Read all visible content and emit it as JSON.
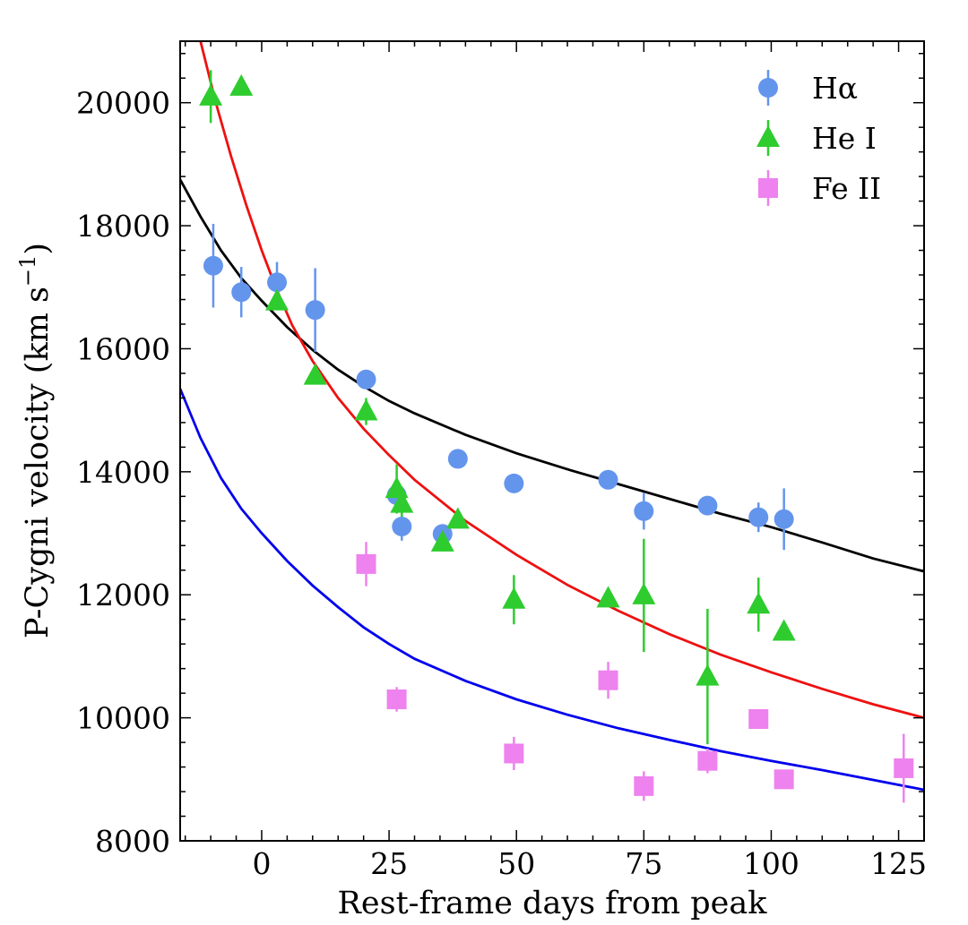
{
  "chart_data": {
    "type": "scatter",
    "title": "",
    "xlabel": "Rest-frame days from peak",
    "ylabel": "P-Cygni velocity (km s",
    "ylabel_superscript": "−1",
    "ylabel_suffix": ")",
    "xlim": [
      -16,
      130
    ],
    "ylim": [
      8000,
      21000
    ],
    "xticks": [
      0,
      25,
      50,
      75,
      100,
      125
    ],
    "xtick_labels": [
      "0",
      "25",
      "50",
      "75",
      "100",
      "125"
    ],
    "yticks": [
      8000,
      10000,
      12000,
      14000,
      16000,
      18000,
      20000
    ],
    "ytick_labels": [
      "8000",
      "10000",
      "12000",
      "14000",
      "16000",
      "18000",
      "20000"
    ],
    "legend_position": "top-right",
    "series": [
      {
        "name": "Hα",
        "marker": "circle",
        "color": "#6495ED",
        "points": [
          {
            "x": -9.5,
            "y": 17350,
            "err": 680
          },
          {
            "x": -4,
            "y": 16920,
            "err": 410
          },
          {
            "x": 3,
            "y": 17080,
            "err": 330
          },
          {
            "x": 10.5,
            "y": 16630,
            "err": 680
          },
          {
            "x": 20.5,
            "y": 15500,
            "err": 150
          },
          {
            "x": 26.5,
            "y": 13620,
            "err": 200
          },
          {
            "x": 27.5,
            "y": 13110,
            "err": 230
          },
          {
            "x": 35.5,
            "y": 12990,
            "err": 150
          },
          {
            "x": 38.5,
            "y": 14210,
            "err": 120
          },
          {
            "x": 49.5,
            "y": 13810,
            "err": 120
          },
          {
            "x": 68,
            "y": 13870,
            "err": 120
          },
          {
            "x": 75,
            "y": 13360,
            "err": 300
          },
          {
            "x": 87.5,
            "y": 13450,
            "err": 120
          },
          {
            "x": 97.5,
            "y": 13260,
            "err": 240
          },
          {
            "x": 102.5,
            "y": 13230,
            "err": 500
          }
        ]
      },
      {
        "name": "He I",
        "marker": "triangle",
        "color": "#2ECC2E",
        "points": [
          {
            "x": -10,
            "y": 20100,
            "err": 430
          },
          {
            "x": -4,
            "y": 20260,
            "err": 0
          },
          {
            "x": 3,
            "y": 16770,
            "err": 130
          },
          {
            "x": 10.5,
            "y": 15560,
            "err": 130
          },
          {
            "x": 20.5,
            "y": 14980,
            "err": 220
          },
          {
            "x": 26.5,
            "y": 13720,
            "err": 400
          },
          {
            "x": 27.5,
            "y": 13480,
            "err": 280
          },
          {
            "x": 35.5,
            "y": 12850,
            "err": 120
          },
          {
            "x": 38.5,
            "y": 13220,
            "err": 120
          },
          {
            "x": 49.5,
            "y": 11920,
            "err": 400
          },
          {
            "x": 68,
            "y": 11940,
            "err": 120
          },
          {
            "x": 75,
            "y": 11990,
            "err": 920
          },
          {
            "x": 87.5,
            "y": 10670,
            "err": 1100
          },
          {
            "x": 97.5,
            "y": 11840,
            "err": 440
          },
          {
            "x": 102.5,
            "y": 11400,
            "err": 120
          }
        ]
      },
      {
        "name": "Fe II",
        "marker": "square",
        "color": "#EE82EE",
        "points": [
          {
            "x": 20.5,
            "y": 12500,
            "err": 360
          },
          {
            "x": 26.5,
            "y": 10300,
            "err": 200
          },
          {
            "x": 49.5,
            "y": 9420,
            "err": 270
          },
          {
            "x": 68,
            "y": 10610,
            "err": 300
          },
          {
            "x": 75,
            "y": 8890,
            "err": 240
          },
          {
            "x": 87.5,
            "y": 9300,
            "err": 200
          },
          {
            "x": 97.5,
            "y": 9980,
            "err": 130
          },
          {
            "x": 102.5,
            "y": 9000,
            "err": 130
          },
          {
            "x": 126,
            "y": 9180,
            "err": 560
          }
        ]
      }
    ],
    "fit_curves": [
      {
        "name": "Hα fit",
        "color": "#000000",
        "points": [
          [
            -16,
            18750
          ],
          [
            -12,
            18150
          ],
          [
            -8,
            17600
          ],
          [
            -4,
            17150
          ],
          [
            0,
            16780
          ],
          [
            5,
            16350
          ],
          [
            10,
            15980
          ],
          [
            15,
            15660
          ],
          [
            20,
            15390
          ],
          [
            25,
            15150
          ],
          [
            30,
            14950
          ],
          [
            40,
            14600
          ],
          [
            50,
            14300
          ],
          [
            60,
            14040
          ],
          [
            70,
            13800
          ],
          [
            80,
            13560
          ],
          [
            90,
            13320
          ],
          [
            100,
            13100
          ],
          [
            110,
            12850
          ],
          [
            120,
            12590
          ],
          [
            130,
            12380
          ]
        ]
      },
      {
        "name": "He I fit",
        "color": "#EE1111",
        "points": [
          [
            -12,
            21000
          ],
          [
            -9,
            20000
          ],
          [
            -6,
            19130
          ],
          [
            -3,
            18330
          ],
          [
            0,
            17600
          ],
          [
            3,
            16950
          ],
          [
            6,
            16380
          ],
          [
            10,
            15800
          ],
          [
            15,
            15200
          ],
          [
            20,
            14700
          ],
          [
            25,
            14270
          ],
          [
            30,
            13870
          ],
          [
            40,
            13200
          ],
          [
            50,
            12650
          ],
          [
            60,
            12160
          ],
          [
            70,
            11740
          ],
          [
            80,
            11360
          ],
          [
            90,
            11030
          ],
          [
            100,
            10740
          ],
          [
            110,
            10470
          ],
          [
            120,
            10220
          ],
          [
            130,
            10000
          ]
        ]
      },
      {
        "name": "Fe II fit",
        "color": "#0000EE",
        "points": [
          [
            -16,
            15350
          ],
          [
            -12,
            14550
          ],
          [
            -8,
            13900
          ],
          [
            -4,
            13400
          ],
          [
            0,
            13000
          ],
          [
            5,
            12550
          ],
          [
            10,
            12150
          ],
          [
            15,
            11800
          ],
          [
            20,
            11470
          ],
          [
            25,
            11200
          ],
          [
            30,
            10960
          ],
          [
            40,
            10600
          ],
          [
            50,
            10300
          ],
          [
            60,
            10050
          ],
          [
            70,
            9830
          ],
          [
            80,
            9640
          ],
          [
            90,
            9460
          ],
          [
            100,
            9300
          ],
          [
            110,
            9150
          ],
          [
            120,
            8990
          ],
          [
            130,
            8830
          ]
        ]
      }
    ]
  }
}
